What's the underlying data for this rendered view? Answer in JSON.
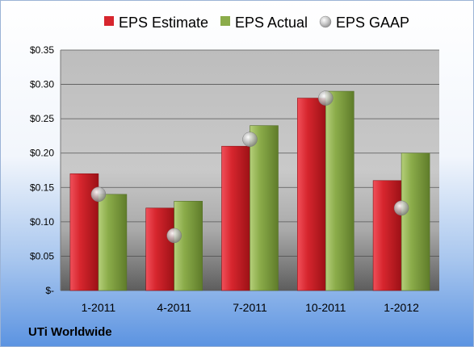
{
  "chart_data": {
    "type": "bar",
    "categories": [
      "1-2011",
      "4-2011",
      "7-2011",
      "10-2011",
      "1-2012"
    ],
    "series": [
      {
        "name": "EPS Estimate",
        "values": [
          0.17,
          0.12,
          0.21,
          0.28,
          0.16
        ],
        "color": "#d7262e"
      },
      {
        "name": "EPS Actual",
        "values": [
          0.14,
          0.13,
          0.24,
          0.29,
          0.2
        ],
        "color": "#8bac4a"
      },
      {
        "name": "EPS GAAP",
        "values": [
          0.14,
          0.08,
          0.22,
          0.28,
          0.12
        ],
        "color": "#b8b8b8",
        "marker": "sphere"
      }
    ],
    "ylim": [
      0,
      0.35
    ],
    "yticks": [
      0,
      0.05,
      0.1,
      0.15,
      0.2,
      0.25,
      0.3,
      0.35
    ],
    "ytick_labels": [
      "$-",
      "$0.05",
      "$0.10",
      "$0.15",
      "$0.20",
      "$0.25",
      "$0.30",
      "$0.35"
    ],
    "grid": true,
    "legend_position": "top",
    "company": "UTi Worldwide"
  }
}
